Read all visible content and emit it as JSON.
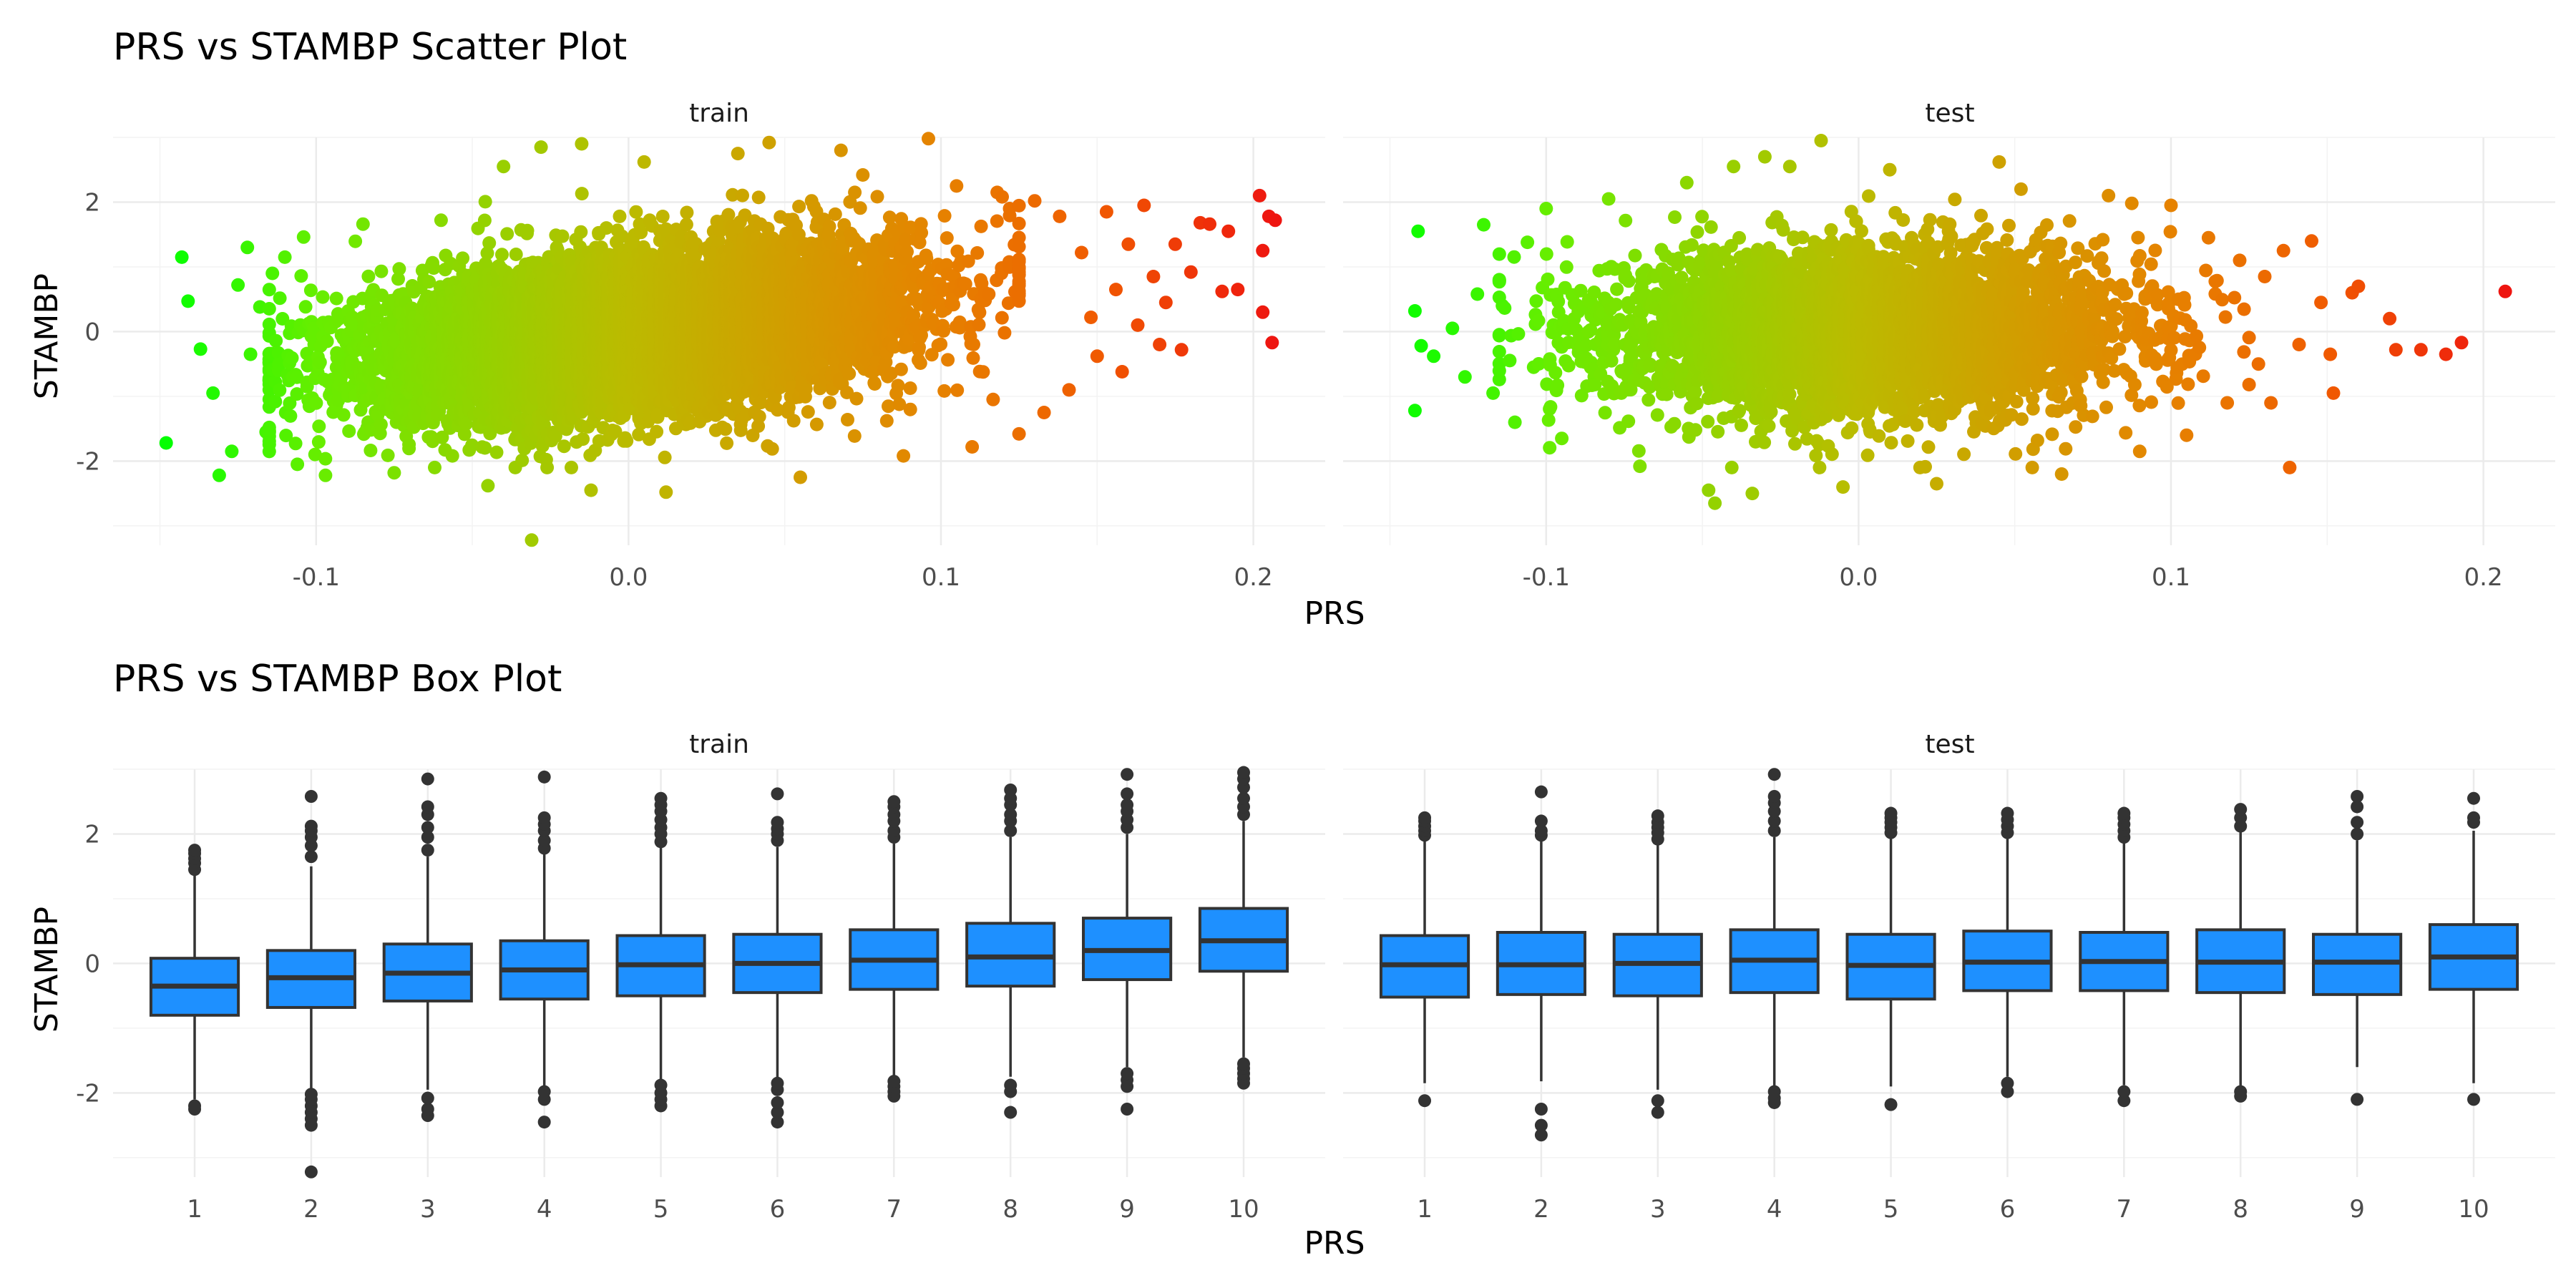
{
  "chart_data": [
    {
      "type": "scatter",
      "title": "PRS vs STAMBP Scatter Plot",
      "xlabel": "PRS",
      "ylabel": "STAMBP",
      "facets": [
        {
          "name": "train",
          "xlim": [
            -0.165,
            0.223
          ],
          "ylim": [
            -3.3,
            3.0
          ],
          "x_ticks": [
            -0.1,
            0.0,
            0.1,
            0.2
          ],
          "x_tick_labels": [
            "-0.1",
            "0.0",
            "0.1",
            "0.2"
          ],
          "y_ticks": [
            -2,
            0,
            2
          ],
          "y_tick_labels": [
            "-2",
            "0",
            "2"
          ],
          "points": [
            [
              -0.148,
              -1.72
            ],
            [
              -0.143,
              1.15
            ],
            [
              -0.141,
              0.47
            ],
            [
              -0.137,
              -0.27
            ],
            [
              -0.133,
              -0.95
            ],
            [
              -0.131,
              -2.22
            ],
            [
              -0.127,
              -1.85
            ],
            [
              -0.125,
              0.72
            ],
            [
              -0.122,
              1.3
            ],
            [
              -0.121,
              -0.35
            ],
            [
              -0.118,
              0.38
            ],
            [
              -0.116,
              -1.55
            ],
            [
              -0.114,
              0.9
            ],
            [
              -0.112,
              -0.6
            ],
            [
              -0.11,
              1.15
            ],
            [
              -0.106,
              -2.05
            ],
            [
              -0.104,
              1.46
            ],
            [
              -0.097,
              -2.22
            ],
            [
              -0.085,
              1.66
            ],
            [
              -0.075,
              -2.18
            ],
            [
              -0.06,
              1.72
            ],
            [
              -0.045,
              -2.38
            ],
            [
              -0.04,
              2.55
            ],
            [
              -0.031,
              -3.22
            ],
            [
              -0.028,
              2.85
            ],
            [
              -0.015,
              2.9
            ],
            [
              -0.012,
              -2.45
            ],
            [
              0.005,
              2.62
            ],
            [
              0.012,
              -2.48
            ],
            [
              0.035,
              2.75
            ],
            [
              0.045,
              2.92
            ],
            [
              0.055,
              -2.25
            ],
            [
              0.068,
              2.8
            ],
            [
              0.075,
              2.42
            ],
            [
              0.096,
              2.98
            ],
            [
              0.088,
              -1.92
            ],
            [
              0.105,
              2.25
            ],
            [
              0.11,
              -1.78
            ],
            [
              0.118,
              2.15
            ],
            [
              0.122,
              1.9
            ],
            [
              0.125,
              -1.58
            ],
            [
              0.13,
              2.02
            ],
            [
              0.133,
              -1.25
            ],
            [
              0.138,
              1.78
            ],
            [
              0.141,
              -0.9
            ],
            [
              0.145,
              1.22
            ],
            [
              0.148,
              0.22
            ],
            [
              0.15,
              -0.38
            ],
            [
              0.153,
              1.85
            ],
            [
              0.156,
              0.65
            ],
            [
              0.158,
              -0.62
            ],
            [
              0.16,
              1.35
            ],
            [
              0.163,
              0.1
            ],
            [
              0.165,
              1.95
            ],
            [
              0.168,
              0.85
            ],
            [
              0.17,
              -0.2
            ],
            [
              0.172,
              0.45
            ],
            [
              0.175,
              1.35
            ],
            [
              0.177,
              -0.28
            ],
            [
              0.18,
              0.92
            ],
            [
              0.183,
              1.68
            ],
            [
              0.186,
              1.66
            ],
            [
              0.19,
              0.62
            ],
            [
              0.192,
              1.55
            ],
            [
              0.195,
              0.65
            ],
            [
              0.202,
              2.1
            ],
            [
              0.203,
              1.25
            ],
            [
              0.203,
              0.3
            ],
            [
              0.205,
              1.78
            ],
            [
              0.206,
              -0.17
            ],
            [
              0.207,
              1.72
            ]
          ]
        },
        {
          "name": "test",
          "xlim": [
            -0.165,
            0.223
          ],
          "ylim": [
            -3.3,
            3.0
          ],
          "x_ticks": [
            -0.1,
            0.0,
            0.1,
            0.2
          ],
          "x_tick_labels": [
            "-0.1",
            "0.0",
            "0.1",
            "0.2"
          ],
          "y_ticks": [
            -2,
            0,
            2
          ],
          "y_tick_labels": [
            "-2",
            "0",
            "2"
          ],
          "points": [
            [
              -0.142,
              -1.22
            ],
            [
              -0.141,
              1.55
            ],
            [
              -0.142,
              0.32
            ],
            [
              -0.14,
              -0.22
            ],
            [
              -0.136,
              -0.38
            ],
            [
              -0.13,
              0.05
            ],
            [
              -0.126,
              -0.7
            ],
            [
              -0.122,
              0.58
            ],
            [
              -0.12,
              1.65
            ],
            [
              -0.117,
              -0.95
            ],
            [
              -0.114,
              0.4
            ],
            [
              -0.11,
              -1.4
            ],
            [
              -0.106,
              1.38
            ],
            [
              -0.104,
              -0.55
            ],
            [
              -0.1,
              1.9
            ],
            [
              -0.095,
              -1.65
            ],
            [
              -0.08,
              2.05
            ],
            [
              -0.07,
              -2.08
            ],
            [
              -0.055,
              2.3
            ],
            [
              -0.048,
              -2.45
            ],
            [
              -0.046,
              -2.65
            ],
            [
              -0.04,
              2.55
            ],
            [
              -0.034,
              -2.5
            ],
            [
              -0.03,
              2.7
            ],
            [
              -0.022,
              2.55
            ],
            [
              -0.012,
              2.95
            ],
            [
              -0.005,
              -2.4
            ],
            [
              0.01,
              2.5
            ],
            [
              0.025,
              -2.35
            ],
            [
              0.045,
              2.62
            ],
            [
              0.052,
              2.2
            ],
            [
              0.065,
              -2.2
            ],
            [
              0.08,
              2.1
            ],
            [
              0.09,
              -1.85
            ],
            [
              0.1,
              1.95
            ],
            [
              0.105,
              -1.6
            ],
            [
              0.112,
              1.45
            ],
            [
              0.118,
              -1.1
            ],
            [
              0.122,
              1.1
            ],
            [
              0.128,
              -0.5
            ],
            [
              0.13,
              0.85
            ],
            [
              0.132,
              -1.1
            ],
            [
              0.136,
              1.25
            ],
            [
              0.138,
              -2.1
            ],
            [
              0.141,
              -0.2
            ],
            [
              0.145,
              1.4
            ],
            [
              0.148,
              0.45
            ],
            [
              0.151,
              -0.35
            ],
            [
              0.152,
              -0.95
            ],
            [
              0.158,
              0.6
            ],
            [
              0.16,
              0.7
            ],
            [
              0.17,
              0.2
            ],
            [
              0.172,
              -0.28
            ],
            [
              0.18,
              -0.28
            ],
            [
              0.188,
              -0.35
            ],
            [
              0.193,
              -0.17
            ],
            [
              0.207,
              0.62
            ]
          ]
        }
      ]
    },
    {
      "type": "box",
      "title": "PRS vs STAMBP Box Plot",
      "xlabel": "PRS",
      "ylabel": "STAMBP",
      "categories": [
        "1",
        "2",
        "3",
        "4",
        "5",
        "6",
        "7",
        "8",
        "9",
        "10"
      ],
      "facets": [
        {
          "name": "train",
          "ylim": [
            -3.3,
            3.0
          ],
          "y_ticks": [
            -2,
            0,
            2
          ],
          "y_tick_labels": [
            "-2",
            "0",
            "2"
          ],
          "boxes": [
            {
              "q1": -0.8,
              "median": -0.35,
              "q3": 0.08,
              "lower": -2.1,
              "upper": 1.4,
              "outliers": [
                -2.25,
                -2.2,
                1.45,
                1.55,
                1.62,
                1.7,
                1.75
              ]
            },
            {
              "q1": -0.68,
              "median": -0.22,
              "q3": 0.2,
              "lower": -1.95,
              "upper": 1.5,
              "outliers": [
                -3.22,
                -2.5,
                -2.4,
                -2.3,
                -2.2,
                -2.1,
                -2.02,
                1.65,
                1.82,
                1.95,
                2.05,
                2.12,
                2.58
              ]
            },
            {
              "q1": -0.58,
              "median": -0.15,
              "q3": 0.3,
              "lower": -1.95,
              "upper": 1.65,
              "outliers": [
                -2.35,
                -2.25,
                -2.08,
                1.75,
                1.95,
                2.1,
                2.3,
                2.42,
                2.85
              ]
            },
            {
              "q1": -0.55,
              "median": -0.1,
              "q3": 0.35,
              "lower": -1.9,
              "upper": 1.7,
              "outliers": [
                -2.45,
                -2.1,
                -1.98,
                1.78,
                1.9,
                2.05,
                2.15,
                2.25,
                2.88
              ]
            },
            {
              "q1": -0.5,
              "median": -0.02,
              "q3": 0.43,
              "lower": -1.82,
              "upper": 1.8,
              "outliers": [
                -2.2,
                -2.1,
                -2.0,
                -1.88,
                1.88,
                2.0,
                2.1,
                2.22,
                2.35,
                2.45,
                2.55
              ]
            },
            {
              "q1": -0.45,
              "median": 0.0,
              "q3": 0.45,
              "lower": -1.78,
              "upper": 1.8,
              "outliers": [
                -2.45,
                -2.3,
                -2.15,
                -1.95,
                -1.85,
                1.9,
                2.0,
                2.08,
                2.18,
                2.62
              ]
            },
            {
              "q1": -0.4,
              "median": 0.05,
              "q3": 0.52,
              "lower": -1.75,
              "upper": 1.85,
              "outliers": [
                -2.05,
                -1.98,
                -1.9,
                -1.82,
                1.95,
                2.05,
                2.2,
                2.3,
                2.42,
                2.5
              ]
            },
            {
              "q1": -0.35,
              "median": 0.1,
              "q3": 0.62,
              "lower": -1.75,
              "upper": 1.95,
              "outliers": [
                -2.3,
                -1.98,
                -1.88,
                2.05,
                2.2,
                2.3,
                2.45,
                2.55,
                2.68
              ]
            },
            {
              "q1": -0.25,
              "median": 0.2,
              "q3": 0.7,
              "lower": -1.6,
              "upper": 2.0,
              "outliers": [
                -2.25,
                -1.9,
                -1.8,
                -1.7,
                2.1,
                2.22,
                2.35,
                2.45,
                2.62,
                2.92
              ]
            },
            {
              "q1": -0.12,
              "median": 0.35,
              "q3": 0.85,
              "lower": -1.45,
              "upper": 2.2,
              "outliers": [
                -1.85,
                -1.78,
                -1.7,
                -1.62,
                -1.55,
                2.3,
                2.42,
                2.55,
                2.72,
                2.85,
                2.95
              ]
            }
          ]
        },
        {
          "name": "test",
          "ylim": [
            -3.3,
            3.0
          ],
          "y_ticks": [
            -2,
            0,
            2
          ],
          "y_tick_labels": [
            "-2",
            "0",
            "2"
          ],
          "boxes": [
            {
              "q1": -0.52,
              "median": -0.02,
              "q3": 0.43,
              "lower": -1.85,
              "upper": 1.9,
              "outliers": [
                -2.12,
                1.98,
                2.05,
                2.12,
                2.2,
                2.25
              ]
            },
            {
              "q1": -0.48,
              "median": -0.02,
              "q3": 0.48,
              "lower": -1.82,
              "upper": 1.9,
              "outliers": [
                -2.65,
                -2.5,
                -2.25,
                1.98,
                2.05,
                2.2,
                2.65
              ]
            },
            {
              "q1": -0.5,
              "median": 0.0,
              "q3": 0.45,
              "lower": -1.95,
              "upper": 1.85,
              "outliers": [
                -2.3,
                -2.12,
                1.92,
                2.02,
                2.1,
                2.18,
                2.28
              ]
            },
            {
              "q1": -0.45,
              "median": 0.05,
              "q3": 0.52,
              "lower": -1.9,
              "upper": 1.95,
              "outliers": [
                -2.15,
                -2.08,
                -1.98,
                2.05,
                2.2,
                2.35,
                2.48,
                2.58,
                2.92
              ]
            },
            {
              "q1": -0.55,
              "median": -0.03,
              "q3": 0.45,
              "lower": -1.9,
              "upper": 1.95,
              "outliers": [
                -2.18,
                2.02,
                2.1,
                2.18,
                2.25,
                2.32
              ]
            },
            {
              "q1": -0.42,
              "median": 0.02,
              "q3": 0.5,
              "lower": -1.75,
              "upper": 1.95,
              "outliers": [
                -1.98,
                -1.85,
                2.02,
                2.12,
                2.22,
                2.32
              ]
            },
            {
              "q1": -0.42,
              "median": 0.03,
              "q3": 0.48,
              "lower": -1.88,
              "upper": 1.9,
              "outliers": [
                -2.12,
                -1.98,
                1.95,
                2.05,
                2.15,
                2.25,
                2.32
              ]
            },
            {
              "q1": -0.45,
              "median": 0.02,
              "q3": 0.52,
              "lower": -1.9,
              "upper": 2.05,
              "outliers": [
                -2.05,
                -1.98,
                2.12,
                2.25,
                2.38
              ]
            },
            {
              "q1": -0.48,
              "median": 0.02,
              "q3": 0.45,
              "lower": -1.6,
              "upper": 1.9,
              "outliers": [
                -2.1,
                2.0,
                2.18,
                2.42,
                2.58
              ]
            },
            {
              "q1": -0.4,
              "median": 0.1,
              "q3": 0.6,
              "lower": -1.85,
              "upper": 2.05,
              "outliers": [
                -2.1,
                2.18,
                2.25,
                2.55
              ]
            }
          ]
        }
      ]
    }
  ]
}
